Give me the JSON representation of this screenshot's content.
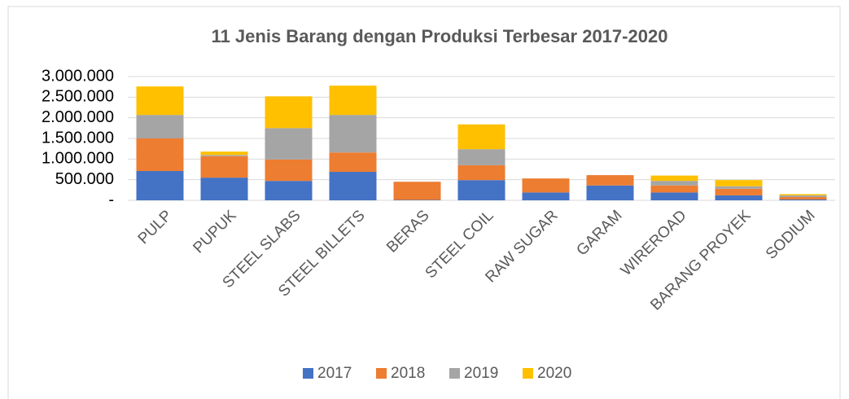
{
  "chart_data": {
    "type": "bar",
    "stacked": true,
    "title": "11 Jenis Barang dengan Produksi Terbesar 2017-2020",
    "categories": [
      "PULP",
      "PUPUK",
      "STEEL SLABS",
      "STEEL BILLETS",
      "BERAS",
      "STEEL COIL",
      "RAW SUGAR",
      "GARAM",
      "WIREROAD",
      "BARANG PROYEK",
      "SODIUM"
    ],
    "series": [
      {
        "name": "2017",
        "color": "#4472c4",
        "values": [
          710000,
          550000,
          470000,
          690000,
          10000,
          490000,
          190000,
          360000,
          190000,
          120000,
          20000
        ]
      },
      {
        "name": "2018",
        "color": "#ed7d31",
        "values": [
          790000,
          520000,
          520000,
          470000,
          440000,
          360000,
          340000,
          250000,
          170000,
          160000,
          60000
        ]
      },
      {
        "name": "2019",
        "color": "#a5a5a5",
        "values": [
          570000,
          30000,
          760000,
          910000,
          0,
          390000,
          0,
          0,
          110000,
          60000,
          40000
        ]
      },
      {
        "name": "2020",
        "color": "#ffc000",
        "values": [
          690000,
          80000,
          770000,
          710000,
          0,
          600000,
          0,
          0,
          130000,
          150000,
          30000
        ]
      }
    ],
    "ylim": [
      0,
      3000000
    ],
    "yticks": [
      {
        "value": 0,
        "label": "-"
      },
      {
        "value": 500000,
        "label": "500.000"
      },
      {
        "value": 1000000,
        "label": "1.000.000"
      },
      {
        "value": 1500000,
        "label": "1.500.000"
      },
      {
        "value": 2000000,
        "label": "2.000.000"
      },
      {
        "value": 2500000,
        "label": "2.500.000"
      },
      {
        "value": 3000000,
        "label": "3.000.000"
      }
    ],
    "grid": true,
    "legend": "bottom"
  }
}
